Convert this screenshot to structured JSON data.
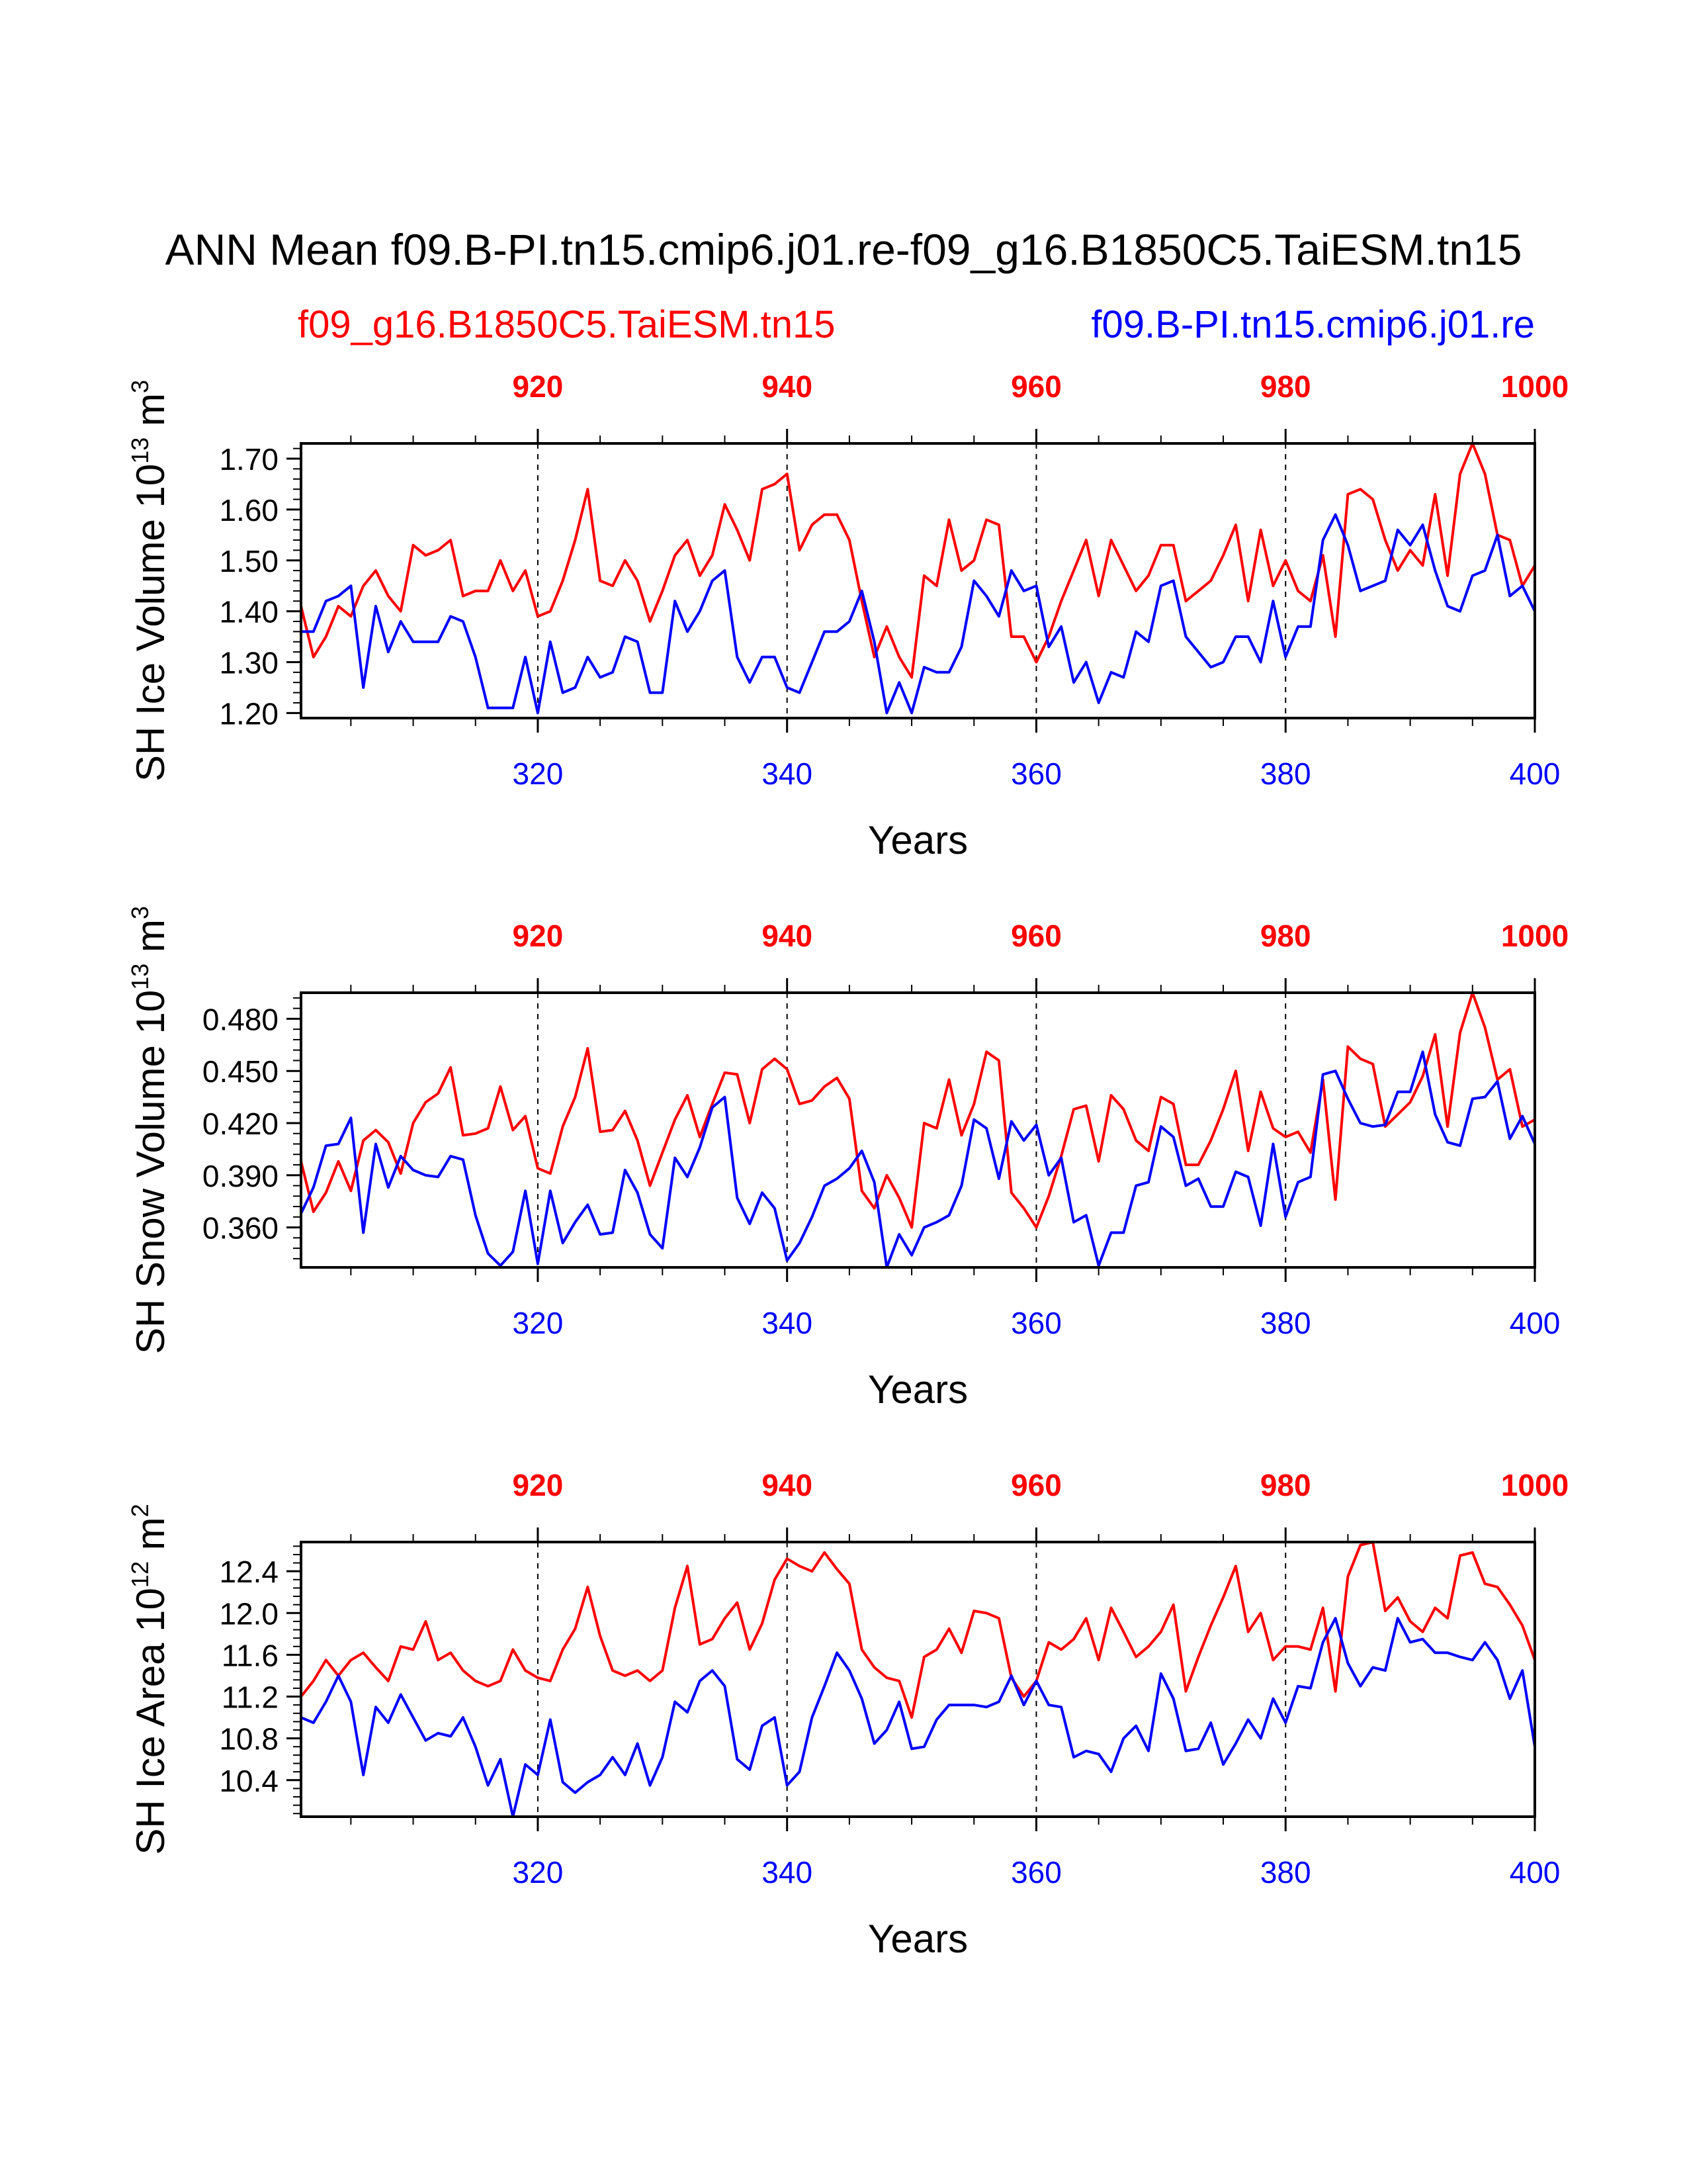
{
  "title": "ANN Mean f09.B-PI.tn15.cmip6.j01.re-f09_g16.B1850C5.TaiESM.tn15",
  "legend": {
    "left": "f09_g16.B1850C5.TaiESM.tn15",
    "right": "f09.B-PI.tn15.cmip6.j01.re"
  },
  "colors": {
    "red": "#ff0000",
    "blue": "#0000ff",
    "axis": "#000000"
  },
  "chart_data": [
    {
      "type": "line",
      "ylabel": "SH Ice Volume 10^13 m^3",
      "ylabel_main": "SH Ice Volume 10",
      "ylabel_exp": "13",
      "ylabel_unit": "m",
      "ylabel_unit_exp": "3",
      "xlabel": "Years",
      "ylim": [
        1.19,
        1.73
      ],
      "yticks": [
        1.2,
        1.3,
        1.4,
        1.5,
        1.6,
        1.7
      ],
      "ytick_labels": [
        "1.20",
        "1.30",
        "1.40",
        "1.50",
        "1.60",
        "1.70"
      ],
      "xlim_bottom": [
        301,
        400
      ],
      "xticks_bottom": [
        320,
        340,
        360,
        380,
        400
      ],
      "xlim_top": [
        901,
        1000
      ],
      "xticks_top": [
        920,
        940,
        960,
        980,
        1000
      ],
      "grid": "dashed vertical lines at 320, 340, 360, 380",
      "series": [
        {
          "name": "f09_g16.B1850C5.TaiESM.tn15",
          "color": "red",
          "axis": "top",
          "x_start": 901,
          "values": [
            1.41,
            1.31,
            1.35,
            1.41,
            1.39,
            1.45,
            1.48,
            1.43,
            1.4,
            1.53,
            1.51,
            1.52,
            1.54,
            1.43,
            1.44,
            1.44,
            1.5,
            1.44,
            1.48,
            1.39,
            1.4,
            1.46,
            1.54,
            1.64,
            1.46,
            1.45,
            1.5,
            1.46,
            1.38,
            1.44,
            1.51,
            1.54,
            1.47,
            1.51,
            1.61,
            1.56,
            1.5,
            1.64,
            1.65,
            1.67,
            1.52,
            1.57,
            1.59,
            1.59,
            1.54,
            1.42,
            1.31,
            1.37,
            1.31,
            1.27,
            1.47,
            1.45,
            1.58,
            1.48,
            1.5,
            1.58,
            1.57,
            1.35,
            1.35,
            1.3,
            1.35,
            1.42,
            1.48,
            1.54,
            1.43,
            1.54,
            1.49,
            1.44,
            1.47,
            1.53,
            1.53,
            1.42,
            1.44,
            1.46,
            1.51,
            1.57,
            1.42,
            1.56,
            1.45,
            1.5,
            1.44,
            1.42,
            1.51,
            1.35,
            1.63,
            1.64,
            1.62,
            1.54,
            1.48,
            1.52,
            1.49,
            1.63,
            1.47,
            1.67,
            1.73,
            1.67,
            1.55,
            1.54,
            1.45,
            1.49
          ]
        },
        {
          "name": "f09.B-PI.tn15.cmip6.j01.re",
          "color": "blue",
          "axis": "bottom",
          "x_start": 301,
          "values": [
            1.36,
            1.36,
            1.42,
            1.43,
            1.45,
            1.25,
            1.41,
            1.32,
            1.38,
            1.34,
            1.34,
            1.34,
            1.39,
            1.38,
            1.31,
            1.21,
            1.21,
            1.21,
            1.31,
            1.2,
            1.34,
            1.24,
            1.25,
            1.31,
            1.27,
            1.28,
            1.35,
            1.34,
            1.24,
            1.24,
            1.42,
            1.36,
            1.4,
            1.46,
            1.48,
            1.31,
            1.26,
            1.31,
            1.31,
            1.25,
            1.24,
            1.3,
            1.36,
            1.36,
            1.38,
            1.44,
            1.34,
            1.2,
            1.26,
            1.2,
            1.29,
            1.28,
            1.28,
            1.33,
            1.46,
            1.43,
            1.39,
            1.48,
            1.44,
            1.45,
            1.33,
            1.37,
            1.26,
            1.3,
            1.22,
            1.28,
            1.27,
            1.36,
            1.34,
            1.45,
            1.46,
            1.35,
            1.32,
            1.29,
            1.3,
            1.35,
            1.35,
            1.3,
            1.42,
            1.31,
            1.37,
            1.37,
            1.54,
            1.59,
            1.53,
            1.44,
            1.45,
            1.46,
            1.56,
            1.53,
            1.57,
            1.48,
            1.41,
            1.4,
            1.47,
            1.48,
            1.55,
            1.43,
            1.45,
            1.4
          ]
        }
      ]
    },
    {
      "type": "line",
      "ylabel": "SH Snow Volume 10^13 m^3",
      "ylabel_main": "SH Snow Volume 10",
      "ylabel_exp": "13",
      "ylabel_unit": "m",
      "ylabel_unit_exp": "3",
      "xlabel": "Years",
      "ylim": [
        0.337,
        0.495
      ],
      "yticks": [
        0.36,
        0.39,
        0.42,
        0.45,
        0.48
      ],
      "ytick_labels": [
        "0.360",
        "0.390",
        "0.420",
        "0.450",
        "0.480"
      ],
      "xlim_bottom": [
        301,
        400
      ],
      "xticks_bottom": [
        320,
        340,
        360,
        380,
        400
      ],
      "xlim_top": [
        901,
        1000
      ],
      "xticks_top": [
        920,
        940,
        960,
        980,
        1000
      ],
      "grid": "dashed vertical lines at 320, 340, 360, 380",
      "series": [
        {
          "name": "f09_g16.B1850C5.TaiESM.tn15",
          "color": "red",
          "axis": "top",
          "x_start": 901,
          "values": [
            0.398,
            0.369,
            0.38,
            0.398,
            0.381,
            0.41,
            0.416,
            0.409,
            0.391,
            0.42,
            0.432,
            0.437,
            0.452,
            0.413,
            0.414,
            0.417,
            0.441,
            0.416,
            0.424,
            0.394,
            0.391,
            0.418,
            0.435,
            0.463,
            0.415,
            0.416,
            0.427,
            0.41,
            0.384,
            0.403,
            0.422,
            0.436,
            0.412,
            0.431,
            0.449,
            0.448,
            0.42,
            0.451,
            0.457,
            0.451,
            0.431,
            0.433,
            0.441,
            0.446,
            0.434,
            0.381,
            0.371,
            0.39,
            0.377,
            0.36,
            0.42,
            0.417,
            0.445,
            0.413,
            0.431,
            0.461,
            0.456,
            0.38,
            0.371,
            0.36,
            0.378,
            0.401,
            0.428,
            0.43,
            0.398,
            0.436,
            0.428,
            0.41,
            0.404,
            0.435,
            0.431,
            0.396,
            0.396,
            0.41,
            0.428,
            0.45,
            0.404,
            0.438,
            0.417,
            0.412,
            0.415,
            0.403,
            0.445,
            0.376,
            0.464,
            0.457,
            0.454,
            0.418,
            0.425,
            0.432,
            0.447,
            0.471,
            0.418,
            0.472,
            0.495,
            0.475,
            0.445,
            0.451,
            0.418,
            0.422
          ]
        },
        {
          "name": "f09.B-PI.tn15.cmip6.j01.re",
          "color": "blue",
          "axis": "bottom",
          "x_start": 301,
          "values": [
            0.368,
            0.383,
            0.407,
            0.408,
            0.423,
            0.357,
            0.408,
            0.383,
            0.401,
            0.393,
            0.39,
            0.389,
            0.401,
            0.399,
            0.367,
            0.345,
            0.338,
            0.346,
            0.381,
            0.339,
            0.381,
            0.351,
            0.363,
            0.373,
            0.356,
            0.357,
            0.393,
            0.38,
            0.356,
            0.348,
            0.4,
            0.389,
            0.406,
            0.429,
            0.435,
            0.377,
            0.362,
            0.38,
            0.371,
            0.341,
            0.351,
            0.366,
            0.384,
            0.388,
            0.394,
            0.404,
            0.386,
            0.337,
            0.356,
            0.344,
            0.36,
            0.363,
            0.367,
            0.384,
            0.422,
            0.417,
            0.388,
            0.421,
            0.41,
            0.419,
            0.39,
            0.4,
            0.363,
            0.367,
            0.338,
            0.357,
            0.357,
            0.384,
            0.386,
            0.418,
            0.412,
            0.384,
            0.388,
            0.372,
            0.372,
            0.392,
            0.389,
            0.361,
            0.408,
            0.366,
            0.386,
            0.389,
            0.448,
            0.45,
            0.434,
            0.42,
            0.418,
            0.419,
            0.438,
            0.438,
            0.461,
            0.425,
            0.409,
            0.407,
            0.434,
            0.435,
            0.444,
            0.411,
            0.424,
            0.408
          ]
        }
      ]
    },
    {
      "type": "line",
      "ylabel": "SH Ice Area 10^12 m^2",
      "ylabel_main": "SH Ice Area 10",
      "ylabel_exp": "12",
      "ylabel_unit": "m",
      "ylabel_unit_exp": "2",
      "xlabel": "Years",
      "ylim": [
        10.05,
        12.68
      ],
      "yticks": [
        10.4,
        10.8,
        11.2,
        11.6,
        12.0,
        12.4
      ],
      "ytick_labels": [
        "10.4",
        "10.8",
        "11.2",
        "11.6",
        "12.0",
        "12.4"
      ],
      "xlim_bottom": [
        301,
        400
      ],
      "xticks_bottom": [
        320,
        340,
        360,
        380,
        400
      ],
      "xlim_top": [
        901,
        1000
      ],
      "xticks_top": [
        920,
        940,
        960,
        980,
        1000
      ],
      "grid": "dashed vertical lines at 320, 340, 360, 380",
      "series": [
        {
          "name": "f09_g16.B1850C5.TaiESM.tn15",
          "color": "red",
          "axis": "top",
          "x_start": 901,
          "values": [
            11.2,
            11.35,
            11.55,
            11.4,
            11.55,
            11.62,
            11.48,
            11.35,
            11.68,
            11.65,
            11.92,
            11.55,
            11.62,
            11.45,
            11.35,
            11.3,
            11.35,
            11.65,
            11.45,
            11.38,
            11.35,
            11.65,
            11.85,
            12.25,
            11.78,
            11.45,
            11.4,
            11.45,
            11.35,
            11.45,
            12.05,
            12.45,
            11.7,
            11.75,
            11.95,
            12.1,
            11.65,
            11.9,
            12.32,
            12.52,
            12.45,
            12.4,
            12.58,
            12.42,
            12.28,
            11.65,
            11.48,
            11.38,
            11.35,
            11.0,
            11.58,
            11.65,
            11.85,
            11.62,
            12.02,
            12.0,
            11.95,
            11.38,
            11.2,
            11.35,
            11.72,
            11.65,
            11.75,
            11.95,
            11.55,
            12.05,
            11.82,
            11.58,
            11.68,
            11.82,
            12.08,
            11.25,
            11.58,
            11.88,
            12.15,
            12.45,
            11.82,
            12.0,
            11.55,
            11.68,
            11.68,
            11.65,
            12.05,
            11.25,
            12.35,
            12.65,
            12.68,
            12.02,
            12.15,
            11.92,
            11.82,
            12.05,
            11.95,
            12.55,
            12.58,
            12.28,
            12.25,
            12.08,
            11.88,
            11.55
          ]
        },
        {
          "name": "f09.B-PI.tn15.cmip6.j01.re",
          "color": "blue",
          "axis": "bottom",
          "x_start": 301,
          "values": [
            11.0,
            10.95,
            11.15,
            11.4,
            11.15,
            10.45,
            11.1,
            10.95,
            11.22,
            11.0,
            10.78,
            10.85,
            10.82,
            11.0,
            10.72,
            10.35,
            10.6,
            10.05,
            10.55,
            10.45,
            10.98,
            10.38,
            10.28,
            10.38,
            10.45,
            10.62,
            10.45,
            10.75,
            10.35,
            10.62,
            11.15,
            11.05,
            11.35,
            11.45,
            11.3,
            10.6,
            10.5,
            10.92,
            11.0,
            10.35,
            10.48,
            11.0,
            11.3,
            11.62,
            11.45,
            11.18,
            10.75,
            10.88,
            11.15,
            10.7,
            10.72,
            10.98,
            11.12,
            11.12,
            11.12,
            11.1,
            11.15,
            11.4,
            11.12,
            11.35,
            11.12,
            11.1,
            10.62,
            10.68,
            10.65,
            10.48,
            10.8,
            10.92,
            10.68,
            11.42,
            11.18,
            10.68,
            10.7,
            10.95,
            10.55,
            10.75,
            10.98,
            10.8,
            11.18,
            10.95,
            11.3,
            11.28,
            11.72,
            11.95,
            11.52,
            11.3,
            11.48,
            11.45,
            11.95,
            11.72,
            11.75,
            11.62,
            11.62,
            11.58,
            11.55,
            11.72,
            11.55,
            11.18,
            11.45,
            10.72
          ]
        }
      ]
    }
  ]
}
